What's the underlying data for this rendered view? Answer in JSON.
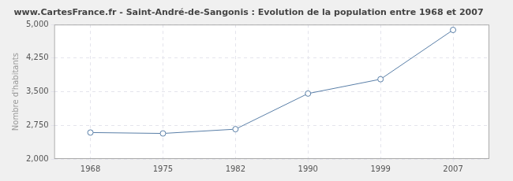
{
  "chart_data": {
    "type": "line",
    "title": "www.CartesFrance.fr - Saint-André-de-Sangonis : Evolution de la population entre 1968 et 2007",
    "y_label": "Nombre d'habitants",
    "categories": [
      "1968",
      "1975",
      "1982",
      "1990",
      "1999",
      "2007"
    ],
    "values": [
      2590,
      2570,
      2665,
      3460,
      3780,
      4880
    ],
    "color": "#5a7fa8",
    "marker": "circle",
    "ylim": [
      2000,
      5000
    ],
    "yticks": [
      2000,
      2750,
      3500,
      4250,
      5000
    ],
    "grid": true
  }
}
